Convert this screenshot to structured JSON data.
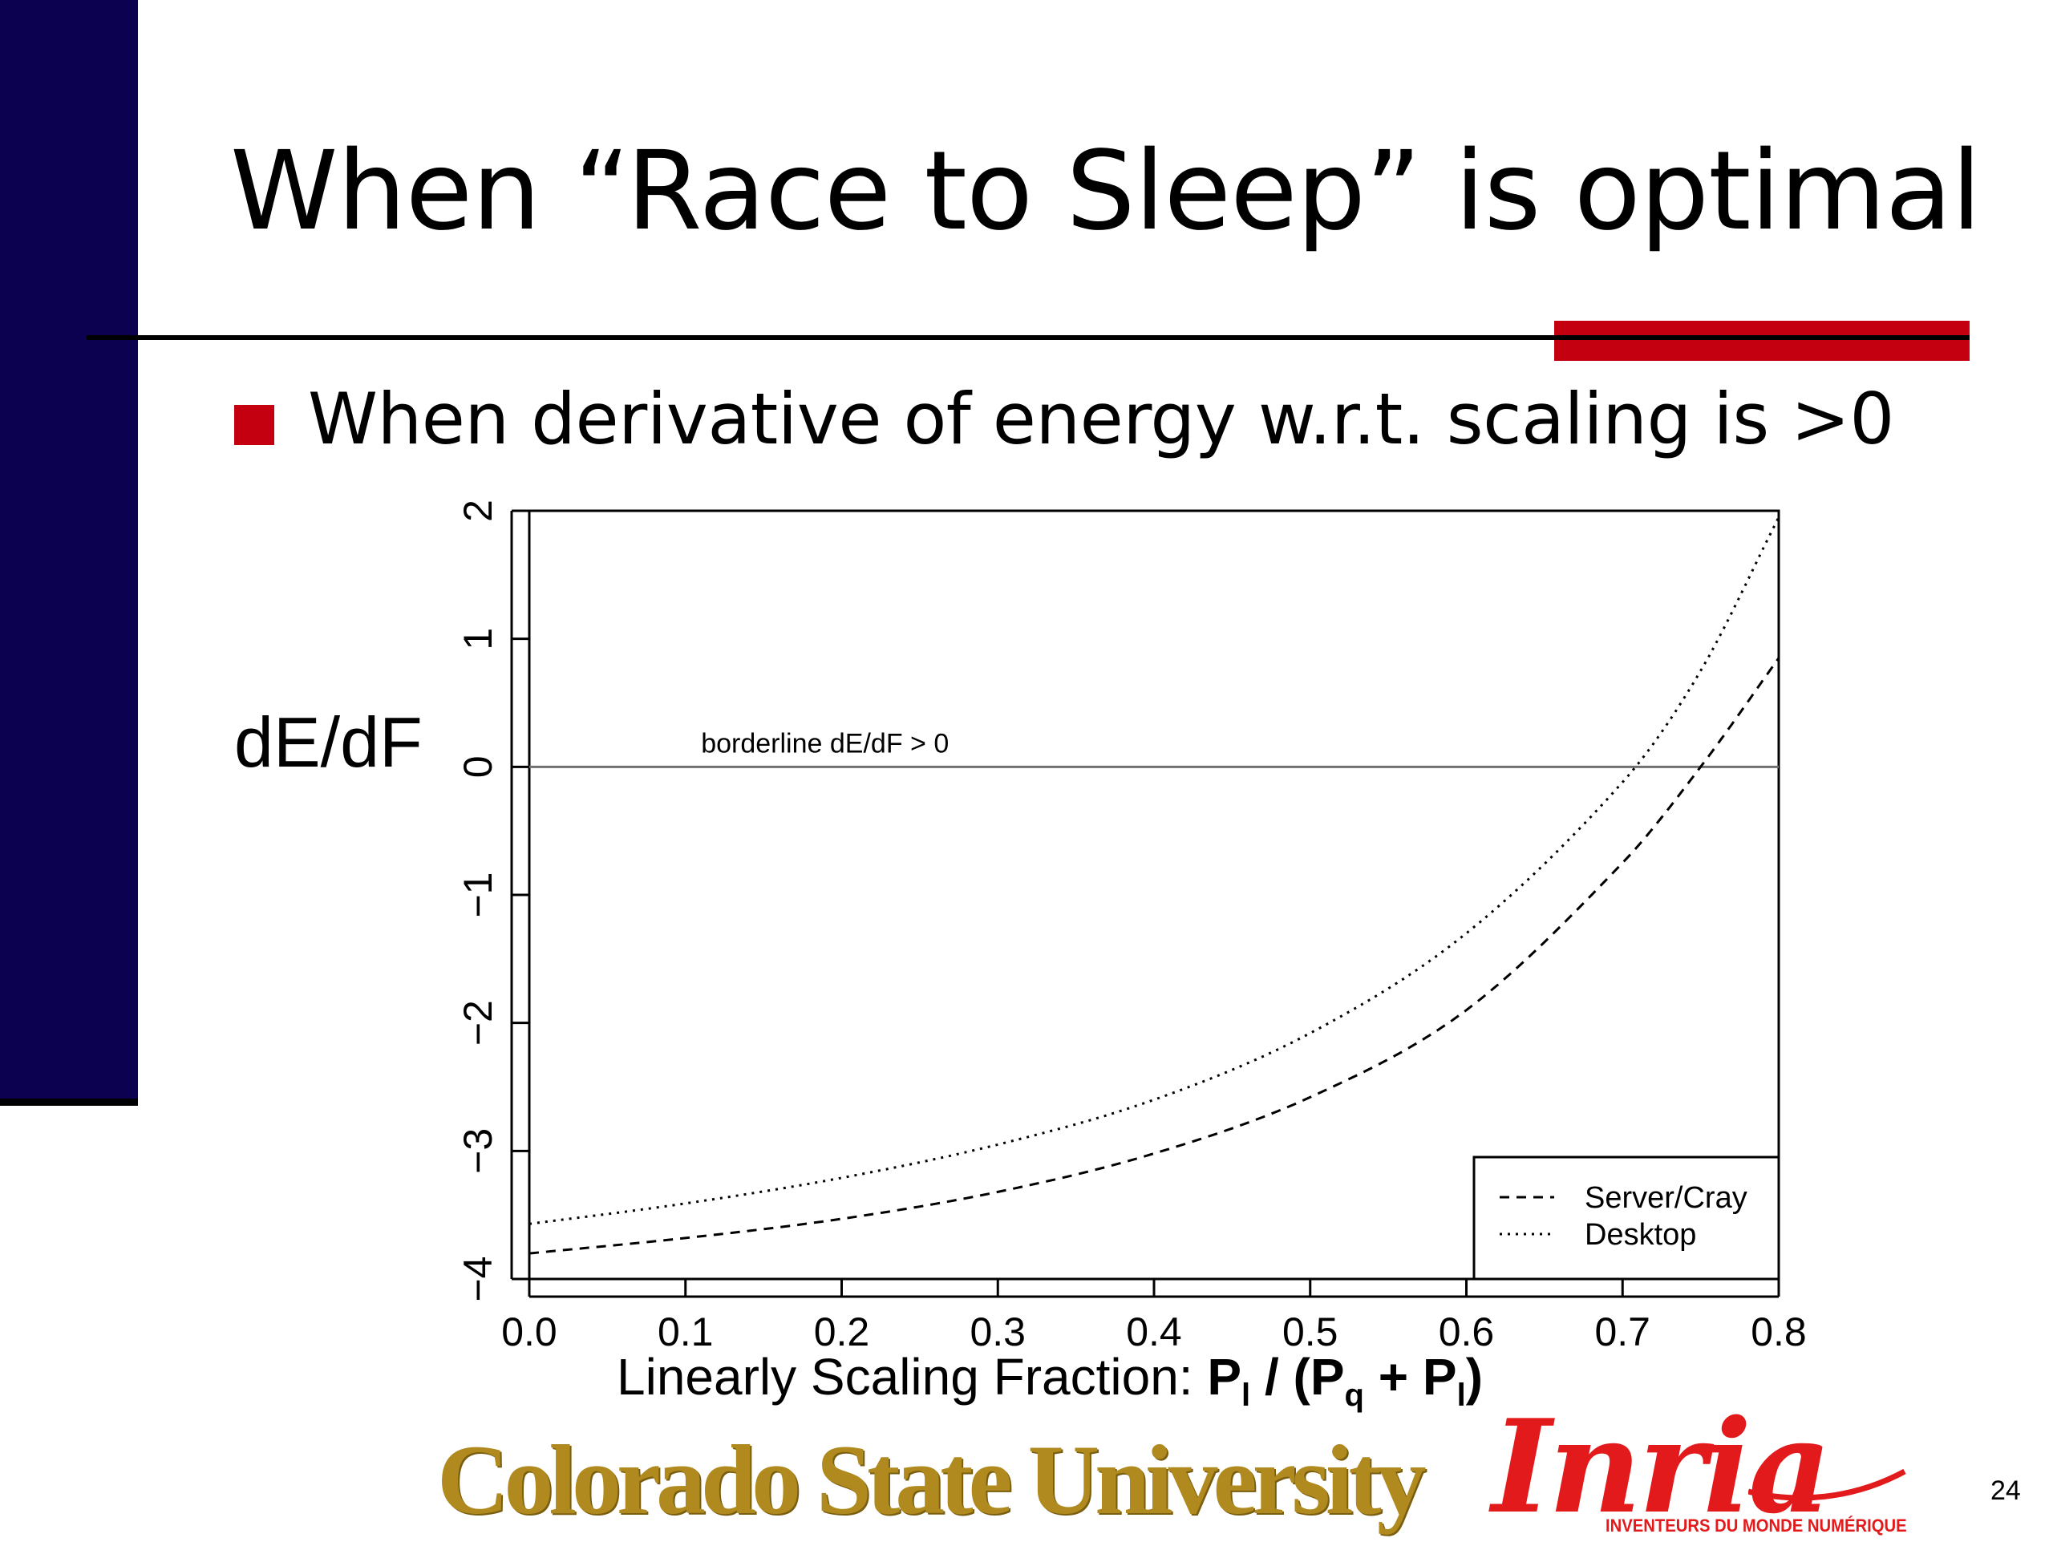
{
  "slide": {
    "title": "When “Race to Sleep” is optimal",
    "bullet": "When derivative of energy w.r.t. scaling is >0",
    "page_number": "24",
    "colors": {
      "sidebar": "#0c0050",
      "accent": "#c40010"
    }
  },
  "logos": {
    "csu": "Colorado State University",
    "inria": "Inria",
    "inria_tagline": "INVENTEURS DU MONDE NUMÉRIQUE"
  },
  "chart_data": {
    "type": "line",
    "ylabel": "dE/dF",
    "xlabel": {
      "prefix": "Linearly Scaling Fraction: ",
      "formula": [
        {
          "text": "P",
          "sub": "l"
        },
        {
          "text": " / ("
        },
        {
          "text": "P",
          "sub": "q"
        },
        {
          "text": " + "
        },
        {
          "text": "P",
          "sub": "l"
        },
        {
          "text": ")"
        }
      ]
    },
    "xlim": [
      0.0,
      0.8
    ],
    "ylim": [
      -4,
      2
    ],
    "xticks": [
      "0.0",
      "0.1",
      "0.2",
      "0.3",
      "0.4",
      "0.5",
      "0.6",
      "0.7",
      "0.8"
    ],
    "yticks": [
      "−4",
      "−3",
      "−2",
      "−1",
      "0",
      "1",
      "2"
    ],
    "grid": false,
    "legend_position": "bottom-right",
    "reference_line": {
      "y": 0,
      "label": "borderline dE/dF > 0"
    },
    "series": [
      {
        "name": "Server/Cray",
        "style": "dashed",
        "x": [
          0.0,
          0.1,
          0.2,
          0.3,
          0.4,
          0.5,
          0.6,
          0.7,
          0.75,
          0.8
        ],
        "y": [
          -3.8,
          -3.68,
          -3.53,
          -3.32,
          -3.02,
          -2.58,
          -1.9,
          -0.75,
          0.0,
          0.85
        ]
      },
      {
        "name": "Desktop",
        "style": "dotted",
        "x": [
          0.0,
          0.1,
          0.2,
          0.3,
          0.4,
          0.5,
          0.6,
          0.7,
          0.75,
          0.8
        ],
        "y": [
          -3.57,
          -3.41,
          -3.21,
          -2.95,
          -2.6,
          -2.08,
          -1.3,
          -0.12,
          0.75,
          1.95
        ]
      }
    ]
  }
}
